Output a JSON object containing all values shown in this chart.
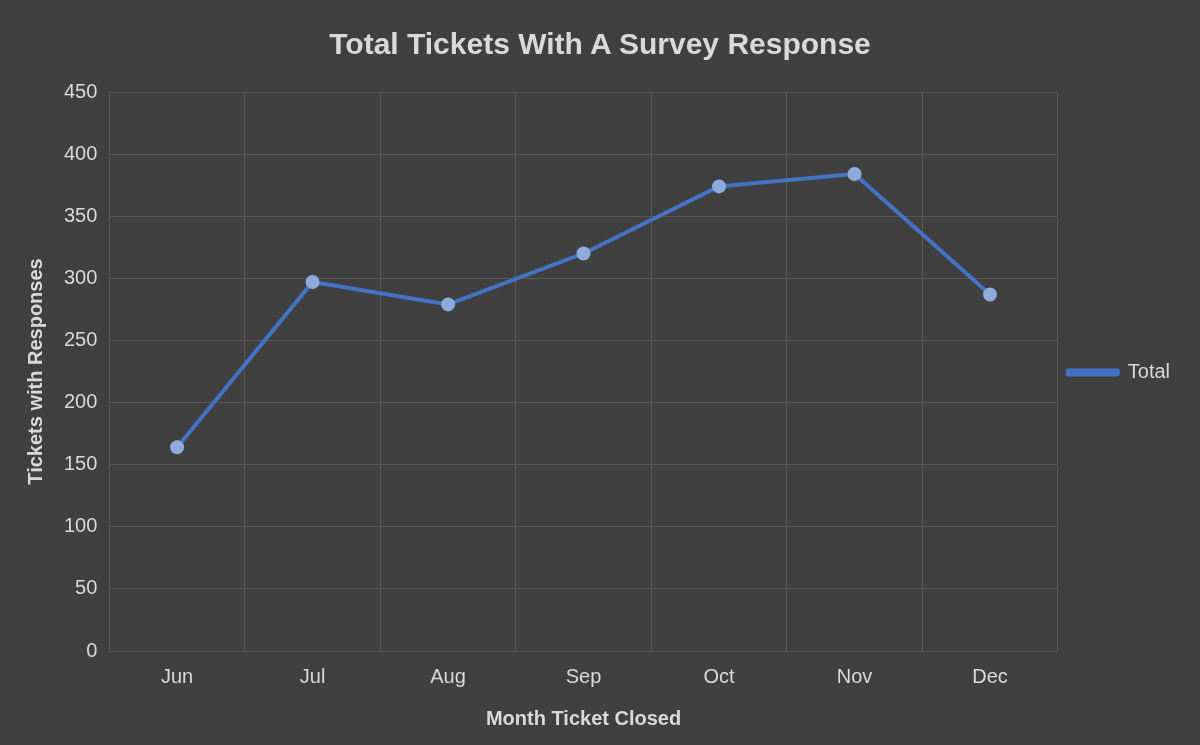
{
  "chart_data": {
    "type": "line",
    "title": "Total Tickets With A Survey Response",
    "xlabel": "Month Ticket Closed",
    "ylabel": "Tickets with Responses",
    "categories": [
      "Jun",
      "Jul",
      "Aug",
      "Sep",
      "Oct",
      "Nov",
      "Dec"
    ],
    "series": [
      {
        "name": "Total",
        "color": "#4472c4",
        "values": [
          164,
          297,
          279,
          320,
          374,
          384,
          287
        ]
      }
    ],
    "ylim": [
      0,
      450
    ],
    "yticks": [
      0,
      50,
      100,
      150,
      200,
      250,
      300,
      350,
      400,
      450
    ],
    "grid": true,
    "legend": "right",
    "marker": "circle",
    "line_style": "solid"
  }
}
